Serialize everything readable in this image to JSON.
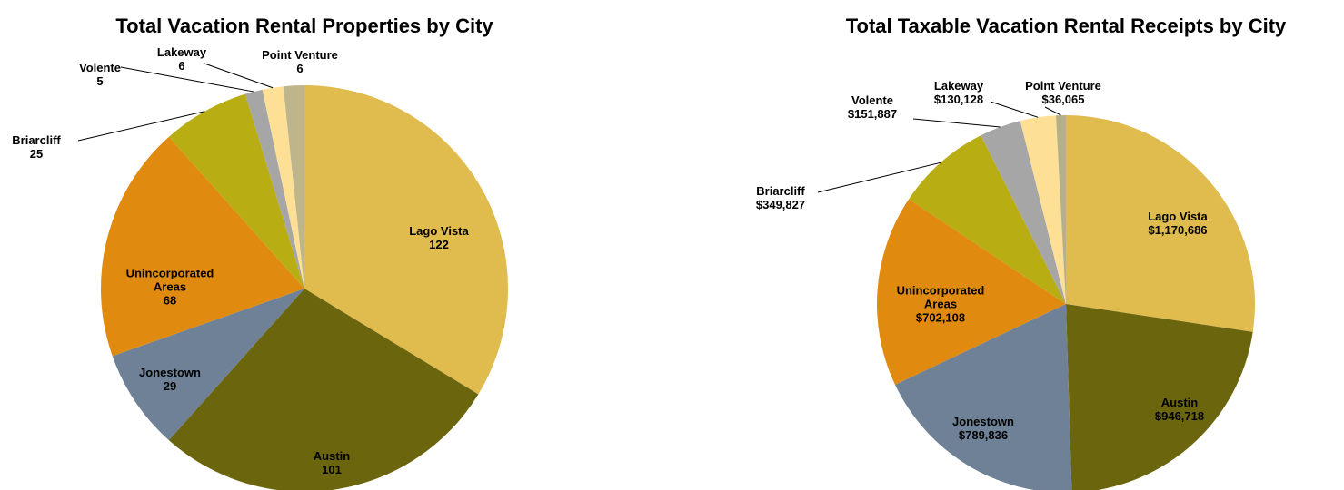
{
  "chart_data": [
    {
      "type": "pie",
      "title": "Total Vacation Rental Properties by City",
      "categories": [
        "Lago Vista",
        "Austin",
        "Jonestown",
        "Unincorporated Areas",
        "Briarcliff",
        "Volente",
        "Lakeway",
        "Point Venture"
      ],
      "values": [
        122,
        101,
        29,
        68,
        25,
        5,
        6,
        6
      ],
      "colors": [
        "#e0bb4e",
        "#6b650e",
        "#6e8196",
        "#e08a10",
        "#b9ad14",
        "#a6a6a6",
        "#fddf96",
        "#bfb58c"
      ]
    },
    {
      "type": "pie",
      "title": "Total Taxable Vacation Rental Receipts by City",
      "categories": [
        "Lago Vista",
        "Austin",
        "Jonestown",
        "Unincorporated Areas",
        "Briarcliff",
        "Volente",
        "Lakeway",
        "Point Venture"
      ],
      "values": [
        1170686,
        946718,
        789836,
        702108,
        349827,
        151887,
        130128,
        36065
      ],
      "value_labels": [
        "$1,170,686",
        "$946,718",
        "$789,836",
        "$702,108",
        "$349,827",
        "$151,887",
        "$130,128",
        "$36,065"
      ],
      "colors": [
        "#e0bb4e",
        "#6b650e",
        "#6e8196",
        "#e08a10",
        "#b9ad14",
        "#a6a6a6",
        "#fddf96",
        "#b5b08a"
      ]
    }
  ]
}
